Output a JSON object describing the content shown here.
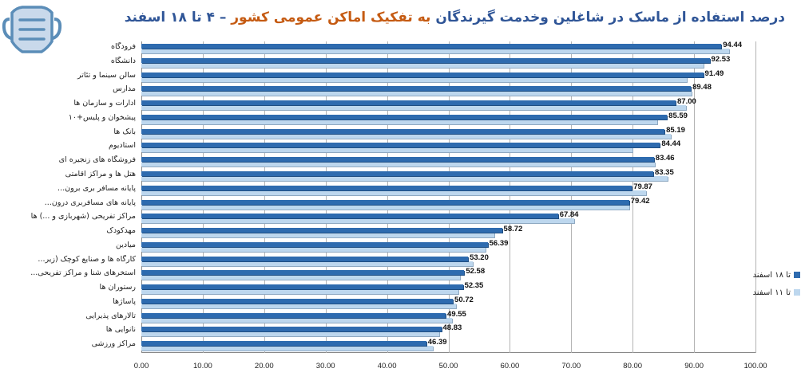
{
  "header": {
    "title_part1": "درصد استفاده از ماسک در شاغلین وخدمت گیرندگان",
    "title_part2": " به تفکیک اماکن عمومی کشور ",
    "title_part3": " – ۴ تا ۱۸ اسفند",
    "icon": "face-mask-icon"
  },
  "colors": {
    "series1": "#2E6BAF",
    "series2": "#BDD7EE",
    "title_blue": "#2F5597",
    "title_orange": "#C55A11"
  },
  "legend": {
    "items": [
      {
        "label": "تا ۱۸ اسفند",
        "color": "#2E6BAF"
      },
      {
        "label": "تا ۱۱ اسفند",
        "color": "#BDD7EE"
      }
    ]
  },
  "chart_data": {
    "type": "bar",
    "orientation": "horizontal",
    "title": "درصد استفاده از ماسک در شاغلین وخدمت گیرندگان به تفکیک اماکن عمومی کشور – ۴ تا ۱۸ اسفند",
    "xlabel": "",
    "ylabel": "",
    "xlim": [
      0,
      100
    ],
    "x_ticks": [
      "0.00",
      "10.00",
      "20.00",
      "30.00",
      "40.00",
      "50.00",
      "60.00",
      "70.00",
      "80.00",
      "90.00",
      "100.00"
    ],
    "grid": true,
    "legend_position": "right",
    "categories": [
      "فرودگاه",
      "دانشگاه",
      "سالن سینما و تئاتر",
      "مدارس",
      "ادارات و سازمان ها",
      "پیشخوان و پلیس+۱۰",
      "بانک ها",
      "استادیوم",
      "فروشگاه های زنجیره ای",
      "هتل ها و مراکز اقامتی",
      "پایانه مسافر بری برون...",
      "پایانه های مسافربری درون...",
      "مراکز تفریحی (شهربازی و ...) ها",
      "مهدکودک",
      "میادین",
      "کارگاه ها و صنایع کوچک (زیر...",
      "استخرهای شنا و مراکز تفریحی...",
      "رستوران ها",
      "پاساژها",
      "تالارهای پذیرایی",
      "نانوایی ها",
      "مراکز ورزشی"
    ],
    "series": [
      {
        "name": "تا ۱۸ اسفند",
        "values": [
          94.44,
          92.53,
          91.49,
          89.48,
          87.0,
          85.59,
          85.19,
          84.44,
          83.46,
          83.35,
          79.87,
          79.42,
          67.84,
          58.72,
          56.39,
          53.2,
          52.58,
          52.35,
          50.72,
          49.55,
          48.83,
          46.39
        ],
        "labels": [
          "94.44",
          "92.53",
          "91.49",
          "89.48",
          "87.00",
          "85.59",
          "85.19",
          "84.44",
          "83.46",
          "83.35",
          "79.87",
          "79.42",
          "67.84",
          "58.72",
          "56.39",
          "53.20",
          "52.58",
          "52.35",
          "50.72",
          "49.55",
          "48.83",
          "46.39"
        ]
      },
      {
        "name": "تا ۱۱ اسفند",
        "values": [
          95.7,
          91.5,
          88.8,
          89.6,
          88.7,
          84.0,
          86.2,
          80.0,
          83.6,
          85.7,
          82.2,
          79.5,
          70.5,
          57.5,
          56.1,
          54.0,
          51.9,
          51.6,
          51.3,
          50.6,
          48.5,
          47.5
        ]
      }
    ]
  }
}
